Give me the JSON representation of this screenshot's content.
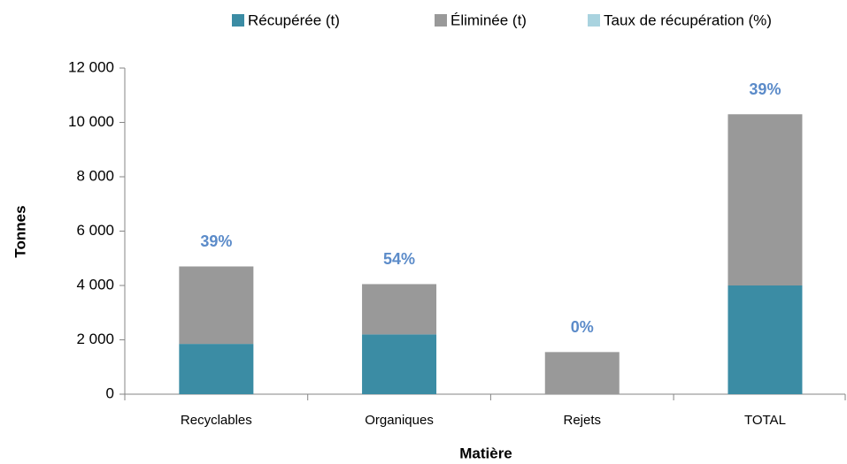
{
  "chart_data": {
    "type": "stacked_bar",
    "x_label": "Matière",
    "y_label": "Tonnes",
    "categories": [
      "Recyclables",
      "Organiques",
      "Rejets",
      "TOTAL"
    ],
    "series": [
      {
        "name": "Récupérée (t)",
        "color": "#3b8ca4",
        "values": [
          1850,
          2200,
          0,
          4000
        ]
      },
      {
        "name": "Éliminée (t)",
        "color": "#999999",
        "values": [
          2850,
          1850,
          1550,
          6300
        ]
      },
      {
        "name": "Taux de récupération (%)",
        "color": "#a9d3df",
        "values": [
          39,
          54,
          0,
          39
        ],
        "value_labels": [
          "39%",
          "54%",
          "0%",
          "39%"
        ]
      }
    ],
    "ylim": [
      0,
      12000
    ],
    "yticks": [
      0,
      {
        "value": 2000,
        "label": "2 000"
      },
      {
        "value": 4000,
        "label": "4 000"
      },
      {
        "value": 6000,
        "label": "6 000"
      },
      {
        "value": 8000,
        "label": "8 000"
      },
      {
        "value": 10000,
        "label": "10 000"
      },
      {
        "value": 12000,
        "label": "12 000"
      }
    ],
    "legend": "top",
    "grid": false
  }
}
